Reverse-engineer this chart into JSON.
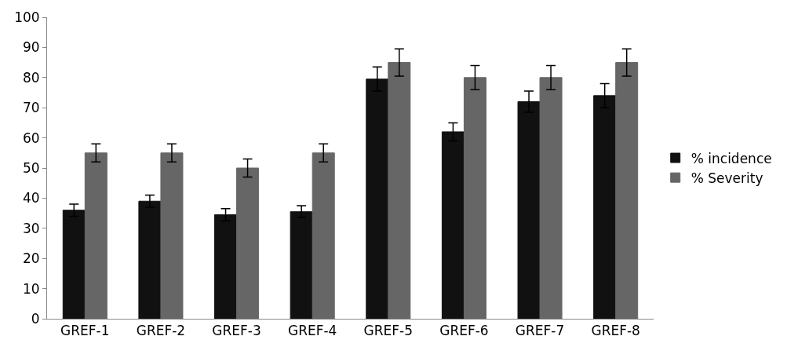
{
  "chart_data": {
    "type": "bar",
    "categories": [
      "GREF-1",
      "GREF-2",
      "GREF-3",
      "GREF-4",
      "GREF-5",
      "GREF-6",
      "GREF-7",
      "GREF-8"
    ],
    "series": [
      {
        "name": "% incidence",
        "color": "#111111",
        "values": [
          36,
          39,
          34.5,
          35.5,
          79.5,
          62,
          72,
          74
        ],
        "errors": [
          2,
          2,
          2,
          2,
          4,
          3,
          3.5,
          4
        ]
      },
      {
        "name": "% Severity",
        "color": "#666666",
        "values": [
          55,
          55,
          50,
          55,
          85,
          80,
          80,
          85
        ],
        "errors": [
          3,
          3,
          3,
          3,
          4.5,
          4,
          4,
          4.5
        ]
      }
    ],
    "ylim": [
      0,
      100
    ],
    "yticks": [
      0,
      10,
      20,
      30,
      40,
      50,
      60,
      70,
      80,
      90,
      100
    ],
    "grid": false,
    "legend": "right"
  }
}
